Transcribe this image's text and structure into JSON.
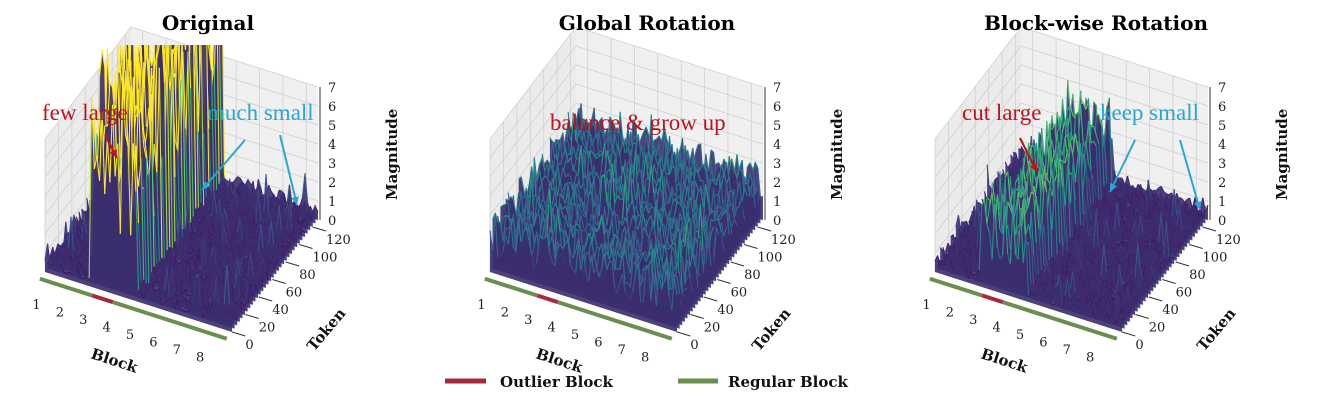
{
  "chart_data": [
    {
      "type": "surface",
      "title": "Original",
      "xlabel": "Block",
      "ylabel": "Token",
      "zlabel": "Magnitude",
      "xticks": [
        "1",
        "2",
        "3",
        "4",
        "5",
        "6",
        "7",
        "8"
      ],
      "yticks": [
        "0",
        "20",
        "40",
        "60",
        "80",
        "100",
        "120"
      ],
      "zticks": [
        "0",
        "1",
        "2",
        "3",
        "4",
        "5",
        "6",
        "7"
      ],
      "zlim": [
        0,
        7
      ],
      "block_typical_magnitude": [
        0.6,
        0.6,
        7,
        7,
        0.6,
        0.6,
        0.6,
        0.6
      ],
      "outlier_blocks": [
        3,
        4
      ],
      "annotations": [
        {
          "text": "few large",
          "color": "#c0111f"
        },
        {
          "text": "much small",
          "color": "#29a6d1"
        }
      ]
    },
    {
      "type": "surface",
      "title": "Global Rotation",
      "xlabel": "Block",
      "ylabel": "Token",
      "zlabel": "Magnitude",
      "xticks": [
        "1",
        "2",
        "3",
        "4",
        "5",
        "6",
        "7",
        "8"
      ],
      "yticks": [
        "0",
        "20",
        "40",
        "60",
        "80",
        "100",
        "120"
      ],
      "zticks": [
        "0",
        "1",
        "2",
        "3",
        "4",
        "5",
        "6",
        "7"
      ],
      "zlim": [
        0,
        7
      ],
      "block_typical_magnitude": [
        2,
        2,
        2,
        2,
        2,
        2,
        2,
        2
      ],
      "outlier_blocks": [
        3,
        4
      ],
      "annotations": [
        {
          "text": "balance & grow up",
          "color": "#c0111f"
        }
      ]
    },
    {
      "type": "surface",
      "title": "Block-wise Rotation",
      "xlabel": "Block",
      "ylabel": "Token",
      "zlabel": "Magnitude",
      "xticks": [
        "1",
        "2",
        "3",
        "4",
        "5",
        "6",
        "7",
        "8"
      ],
      "yticks": [
        "0",
        "20",
        "40",
        "60",
        "80",
        "100",
        "120"
      ],
      "zticks": [
        "0",
        "1",
        "2",
        "3",
        "4",
        "5",
        "6",
        "7"
      ],
      "zlim": [
        0,
        7
      ],
      "block_typical_magnitude": [
        0.6,
        0.6,
        3.5,
        3.5,
        0.6,
        0.6,
        0.6,
        0.6
      ],
      "outlier_blocks": [
        3,
        4
      ],
      "annotations": [
        {
          "text": "cut large",
          "color": "#c0111f"
        },
        {
          "text": "keep small",
          "color": "#29a6d1"
        }
      ]
    }
  ],
  "legend": [
    {
      "label": "Outlier Block",
      "color": "#a8283f"
    },
    {
      "label": "Regular Block",
      "color": "#6a8e4e"
    }
  ],
  "colormap": "viridis"
}
